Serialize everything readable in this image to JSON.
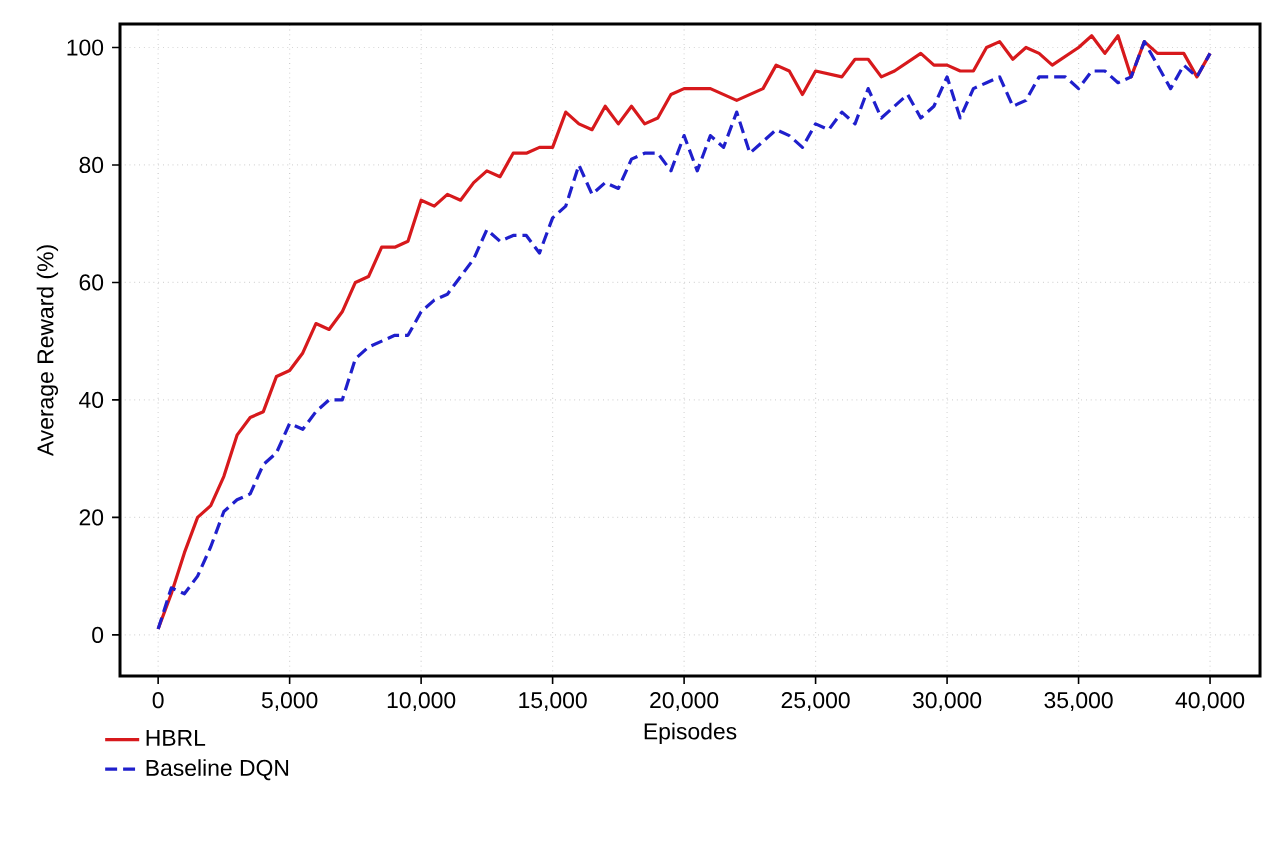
{
  "chart_data": {
    "type": "line",
    "xlabel": "Episodes",
    "ylabel": "Average Reward (%)",
    "xlim": [
      -1450,
      41900
    ],
    "ylim": [
      -7,
      104
    ],
    "xticks": [
      0,
      {
        "value": 5000,
        "label": "5,000"
      },
      {
        "value": 10000,
        "label": "10,000"
      },
      {
        "value": 15000,
        "label": "15,000"
      },
      {
        "value": 20000,
        "label": "20,000"
      },
      {
        "value": 25000,
        "label": "25,000"
      },
      {
        "value": 30000,
        "label": "30,000"
      },
      {
        "value": 35000,
        "label": "35,000"
      },
      {
        "value": 40000,
        "label": "40,000"
      }
    ],
    "yticks": [
      0,
      20,
      40,
      60,
      80,
      100
    ],
    "grid": true,
    "legend": "bottom left",
    "series": [
      {
        "name": "HBRL",
        "color": "#d7191c",
        "line_style": "solid",
        "x": [
          0,
          500,
          1000,
          1500,
          2000,
          2500,
          3000,
          3500,
          4000,
          4500,
          5000,
          5500,
          6000,
          6500,
          7000,
          7500,
          8000,
          8500,
          9000,
          9500,
          10000,
          10500,
          11000,
          11500,
          12000,
          12500,
          13000,
          13500,
          14000,
          14500,
          15000,
          15500,
          16000,
          16500,
          17000,
          17500,
          18000,
          18500,
          19000,
          19500,
          20000,
          20500,
          21000,
          22000,
          22500,
          23000,
          23500,
          24000,
          24500,
          25000,
          26000,
          26500,
          27000,
          27500,
          28000,
          29000,
          29500,
          30000,
          30500,
          31000,
          31500,
          32000,
          32500,
          33000,
          33500,
          34000,
          35000,
          35500,
          36000,
          36500,
          37000,
          37500,
          38000,
          38500,
          39000,
          39500,
          40000
        ],
        "values": [
          1,
          7,
          14,
          20,
          22,
          27,
          34,
          37,
          38,
          44,
          45,
          48,
          53,
          52,
          55,
          60,
          61,
          66,
          66,
          67,
          74,
          73,
          75,
          74,
          77,
          79,
          78,
          82,
          82,
          83,
          83,
          89,
          87,
          86,
          90,
          87,
          90,
          87,
          88,
          92,
          93,
          93,
          93,
          91,
          92,
          93,
          97,
          96,
          92,
          96,
          95,
          98,
          98,
          95,
          96,
          99,
          97,
          97,
          96,
          96,
          100,
          101,
          98,
          100,
          99,
          97,
          100,
          102,
          99,
          102,
          95,
          101,
          99,
          99,
          99,
          95,
          99
        ]
      },
      {
        "name": "Baseline DQN",
        "color": "#1f1fcc",
        "line_style": "dashed",
        "x": [
          0,
          500,
          1000,
          1500,
          2000,
          2500,
          3000,
          3500,
          4000,
          4500,
          5000,
          5500,
          6000,
          6500,
          7000,
          7500,
          8000,
          8500,
          9000,
          9500,
          10000,
          10500,
          11000,
          11500,
          12000,
          12500,
          13000,
          13500,
          14000,
          14500,
          15000,
          15500,
          16000,
          16500,
          17000,
          17500,
          18000,
          18500,
          19000,
          19500,
          20000,
          20500,
          21000,
          21500,
          22000,
          22500,
          23000,
          23500,
          24000,
          24500,
          25000,
          25500,
          26000,
          26500,
          27000,
          27500,
          28000,
          28500,
          29000,
          29500,
          30000,
          30500,
          31000,
          31500,
          32000,
          32500,
          33000,
          33500,
          34000,
          34500,
          35000,
          35500,
          36000,
          36500,
          37000,
          37500,
          38000,
          38500,
          39000,
          39500,
          40000
        ],
        "values": [
          1,
          8,
          7,
          10,
          15,
          21,
          23,
          24,
          29,
          31,
          36,
          35,
          38,
          40,
          40,
          47,
          49,
          50,
          51,
          51,
          55,
          57,
          58,
          61,
          64,
          69,
          67,
          68,
          68,
          65,
          71,
          73,
          80,
          75,
          77,
          76,
          81,
          82,
          82,
          79,
          85,
          79,
          85,
          83,
          89,
          82,
          84,
          86,
          85,
          83,
          87,
          86,
          89,
          87,
          93,
          88,
          90,
          92,
          88,
          90,
          95,
          88,
          93,
          94,
          95,
          90,
          91,
          95,
          95,
          95,
          93,
          96,
          96,
          94,
          95,
          101,
          97,
          93,
          97,
          95,
          99
        ]
      }
    ]
  }
}
